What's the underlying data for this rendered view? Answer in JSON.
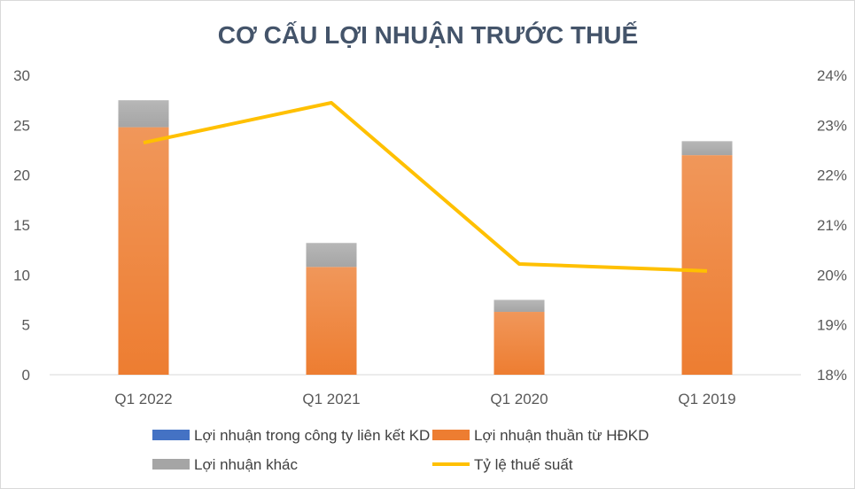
{
  "chart_data": {
    "type": "bar",
    "stacked": true,
    "title": "CƠ CẤU LỢI NHUẬN TRƯỚC THUẾ",
    "categories": [
      "Q1 2022",
      "Q1 2021",
      "Q1 2020",
      "Q1 2019"
    ],
    "y_left": {
      "min": 0,
      "max": 30,
      "ticks": [
        "0",
        "5",
        "10",
        "15",
        "20",
        "25",
        "30"
      ]
    },
    "y_right": {
      "min": 0.18,
      "max": 0.24,
      "ticks": [
        "18%",
        "19%",
        "20%",
        "21%",
        "22%",
        "23%",
        "24%"
      ]
    },
    "series": [
      {
        "name": "Lợi nhuận trong công ty liên kết KD",
        "type": "bar",
        "axis": "left",
        "color": "#4472c4",
        "values": [
          0,
          0,
          0,
          0
        ]
      },
      {
        "name": "Lợi nhuận thuần từ HĐKD",
        "type": "bar",
        "axis": "left",
        "color": "#ed7d31",
        "values": [
          24.8,
          10.8,
          6.3,
          22.0
        ]
      },
      {
        "name": "Lợi nhuận khác",
        "type": "bar",
        "axis": "left",
        "color": "#a5a5a5",
        "values": [
          2.7,
          2.4,
          1.2,
          1.4
        ]
      },
      {
        "name": "Tỷ lệ thuế suất",
        "type": "line",
        "axis": "right",
        "color": "#ffc000",
        "values": [
          0.2265,
          0.2345,
          0.2022,
          0.2008
        ]
      }
    ],
    "grid": false,
    "legend_position": "bottom"
  }
}
